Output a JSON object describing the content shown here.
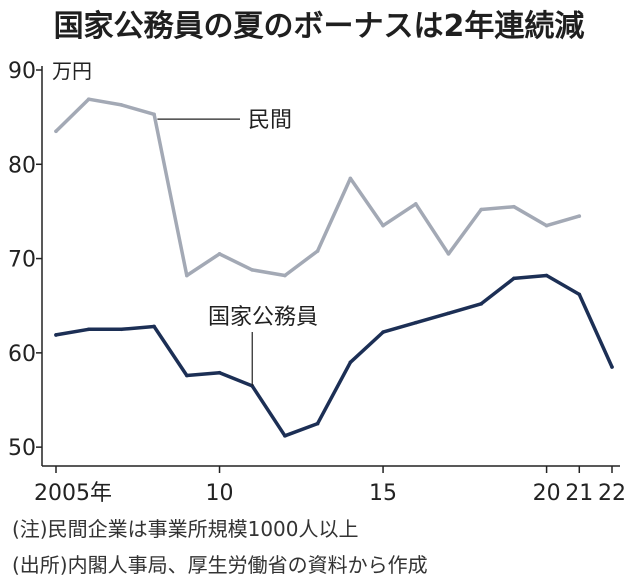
{
  "title": "国家公務員の夏のボーナスは2年連続減",
  "unit_label": "万円",
  "notes": [
    "(注)民間企業は事業所規模1000人以上",
    "(出所)内閣人事局、厚生労働省の資料から作成"
  ],
  "chart_data": {
    "type": "line",
    "title": "国家公務員の夏のボーナスは2年連続減",
    "ylabel": "万円",
    "xlabel": "",
    "ylim": [
      48,
      90
    ],
    "xlim": [
      2005,
      2022
    ],
    "grid": false,
    "y_ticks": [
      {
        "value": 90,
        "label": "90"
      },
      {
        "value": 80,
        "label": "80"
      },
      {
        "value": 70,
        "label": "70"
      },
      {
        "value": 60,
        "label": "60"
      },
      {
        "value": 50,
        "label": "50"
      }
    ],
    "x_ticks": [
      {
        "value": 2005,
        "label": "2005年"
      },
      {
        "value": 2010,
        "label": "10"
      },
      {
        "value": 2015,
        "label": "15"
      },
      {
        "value": 2020,
        "label": "20"
      },
      {
        "value": 2021,
        "label": "21"
      },
      {
        "value": 2022,
        "label": "22"
      }
    ],
    "series": [
      {
        "name": "民間",
        "color": "#a3a9b5",
        "points": [
          {
            "x": 2005,
            "y": 83.5
          },
          {
            "x": 2006,
            "y": 86.9
          },
          {
            "x": 2007,
            "y": 86.3
          },
          {
            "x": 2008,
            "y": 85.3
          },
          {
            "x": 2009,
            "y": 68.2
          },
          {
            "x": 2010,
            "y": 70.5
          },
          {
            "x": 2011,
            "y": 68.8
          },
          {
            "x": 2012,
            "y": 68.2
          },
          {
            "x": 2013,
            "y": 70.8
          },
          {
            "x": 2014,
            "y": 78.5
          },
          {
            "x": 2015,
            "y": 73.5
          },
          {
            "x": 2016,
            "y": 75.8
          },
          {
            "x": 2017,
            "y": 70.5
          },
          {
            "x": 2018,
            "y": 75.2
          },
          {
            "x": 2019,
            "y": 75.5
          },
          {
            "x": 2020,
            "y": 73.5
          },
          {
            "x": 2021,
            "y": 74.5
          }
        ]
      },
      {
        "name": "国家公務員",
        "color": "#1c2f55",
        "points": [
          {
            "x": 2005,
            "y": 61.9
          },
          {
            "x": 2006,
            "y": 62.5
          },
          {
            "x": 2007,
            "y": 62.5
          },
          {
            "x": 2008,
            "y": 62.8
          },
          {
            "x": 2009,
            "y": 57.6
          },
          {
            "x": 2010,
            "y": 57.9
          },
          {
            "x": 2011,
            "y": 56.5
          },
          {
            "x": 2012,
            "y": 51.2
          },
          {
            "x": 2013,
            "y": 52.5
          },
          {
            "x": 2014,
            "y": 59.0
          },
          {
            "x": 2015,
            "y": 62.2
          },
          {
            "x": 2016,
            "y": 63.2
          },
          {
            "x": 2017,
            "y": 64.2
          },
          {
            "x": 2018,
            "y": 65.2
          },
          {
            "x": 2019,
            "y": 67.9
          },
          {
            "x": 2020,
            "y": 68.2
          },
          {
            "x": 2021,
            "y": 66.2
          },
          {
            "x": 2022,
            "y": 58.5
          }
        ]
      }
    ],
    "annotations": [
      {
        "series": "民間",
        "text": "民間",
        "anchor_x": 2008.1,
        "anchor_y": 85.0
      },
      {
        "series": "国家公務員",
        "text": "国家公務員",
        "anchor_x": 2011.0,
        "anchor_y": 56.5
      }
    ]
  }
}
